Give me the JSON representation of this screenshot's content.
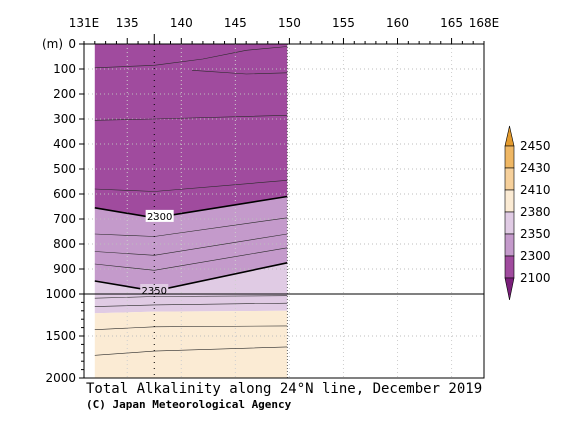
{
  "chart_data": {
    "type": "heatmap",
    "title": "Total Alkalinity along 24°N line, December 2019",
    "credit": "(C) Japan Meteorological Agency",
    "x_axis": {
      "range": [
        131,
        168
      ],
      "tick_labels": [
        {
          "value": 131,
          "label": "131E"
        },
        {
          "value": 135,
          "label": "135"
        },
        {
          "value": 140,
          "label": "140"
        },
        {
          "value": 145,
          "label": "145"
        },
        {
          "value": 150,
          "label": "150"
        },
        {
          "value": 155,
          "label": "155"
        },
        {
          "value": 160,
          "label": "160"
        },
        {
          "value": 165,
          "label": "165"
        },
        {
          "value": 168,
          "label": "168E"
        }
      ]
    },
    "y_axis": {
      "unit_label": "(m)",
      "upper_range": [
        0,
        1000
      ],
      "lower_range": [
        1000,
        2000
      ],
      "tick_labels": [
        {
          "value": 0,
          "label": "0"
        },
        {
          "value": 100,
          "label": "100"
        },
        {
          "value": 200,
          "label": "200"
        },
        {
          "value": 300,
          "label": "300"
        },
        {
          "value": 400,
          "label": "400"
        },
        {
          "value": 500,
          "label": "500"
        },
        {
          "value": 600,
          "label": "600"
        },
        {
          "value": 700,
          "label": "700"
        },
        {
          "value": 800,
          "label": "800"
        },
        {
          "value": 900,
          "label": "900"
        },
        {
          "value": 1000,
          "label": "1000"
        },
        {
          "value": 1500,
          "label": "1500"
        },
        {
          "value": 2000,
          "label": "2000"
        }
      ]
    },
    "data_extent_lon": [
      132,
      149.8
    ],
    "stations_lon": [
      137.5
    ],
    "levels": [
      {
        "low": null,
        "high": 2300,
        "color": "#a04b9e"
      },
      {
        "low": 2300,
        "high": 2350,
        "color": "#c49acb"
      },
      {
        "low": 2350,
        "high": 2380,
        "color": "#e0cbe4"
      },
      {
        "low": 2380,
        "high": 2410,
        "color": "#fbebd4"
      },
      {
        "low": 2410,
        "high": 2430,
        "color": "#f6d09b"
      },
      {
        "low": 2430,
        "high": 2450,
        "color": "#efb764"
      },
      {
        "low": 2450,
        "high": null,
        "color": "#e39a2d"
      }
    ],
    "legend": {
      "labels": [
        "2450",
        "2430",
        "2410",
        "2380",
        "2350",
        "2300",
        "2100"
      ],
      "under_color": "#7a1f7a",
      "over_color": "#e39a2d"
    },
    "contours": [
      {
        "level": 2300,
        "label": "2300",
        "label_lon": 138,
        "depths": [
          [
            132,
            655
          ],
          [
            137.5,
            695
          ],
          [
            149.8,
            610
          ]
        ]
      },
      {
        "level": 2350,
        "label": "2350",
        "label_lon": 137.5,
        "depths": [
          [
            132,
            948
          ],
          [
            137.5,
            988
          ],
          [
            149.8,
            875
          ]
        ]
      }
    ],
    "bands": [
      {
        "color": "#a04b9e",
        "top": [
          [
            132,
            0
          ],
          [
            149.8,
            0
          ]
        ],
        "bottom": [
          [
            132,
            655
          ],
          [
            137.5,
            695
          ],
          [
            149.8,
            610
          ]
        ]
      },
      {
        "color": "#c49acb",
        "top": [
          [
            132,
            655
          ],
          [
            137.5,
            695
          ],
          [
            149.8,
            610
          ]
        ],
        "bottom": [
          [
            132,
            948
          ],
          [
            137.5,
            988
          ],
          [
            149.8,
            875
          ]
        ]
      },
      {
        "color": "#e0cbe4",
        "top": [
          [
            132,
            948
          ],
          [
            137.5,
            988
          ],
          [
            149.8,
            875
          ]
        ],
        "bottom": [
          [
            132,
            1230
          ],
          [
            137.5,
            1210
          ],
          [
            149.8,
            1200
          ]
        ]
      },
      {
        "color": "#fbebd4",
        "top": [
          [
            132,
            1230
          ],
          [
            137.5,
            1210
          ],
          [
            149.8,
            1200
          ]
        ],
        "bottom": [
          [
            132,
            2000
          ],
          [
            149.8,
            2000
          ]
        ]
      }
    ],
    "inner_contours": [
      [
        [
          132,
          95
        ],
        [
          137.5,
          85
        ],
        [
          142,
          60
        ],
        [
          146,
          25
        ],
        [
          149.8,
          10
        ]
      ],
      [
        [
          141,
          105
        ],
        [
          146,
          120
        ],
        [
          149.8,
          115
        ]
      ],
      [
        [
          132,
          305
        ],
        [
          137.5,
          300
        ],
        [
          149.8,
          285
        ]
      ],
      [
        [
          132,
          580
        ],
        [
          137.5,
          590
        ],
        [
          149.8,
          545
        ]
      ],
      [
        [
          132,
          760
        ],
        [
          137.5,
          770
        ],
        [
          149.8,
          695
        ]
      ],
      [
        [
          132,
          830
        ],
        [
          137.5,
          845
        ],
        [
          149.8,
          760
        ]
      ],
      [
        [
          132,
          880
        ],
        [
          137.5,
          905
        ],
        [
          149.8,
          815
        ]
      ],
      [
        [
          132,
          1050
        ],
        [
          137.5,
          1030
        ],
        [
          149.8,
          1020
        ]
      ],
      [
        [
          132,
          1150
        ],
        [
          137.5,
          1130
        ],
        [
          149.8,
          1110
        ]
      ],
      [
        [
          132,
          1425
        ],
        [
          137.5,
          1390
        ],
        [
          149.8,
          1380
        ]
      ],
      [
        [
          132,
          1730
        ],
        [
          137.5,
          1680
        ],
        [
          149.8,
          1630
        ]
      ]
    ],
    "grid": "dotted"
  }
}
